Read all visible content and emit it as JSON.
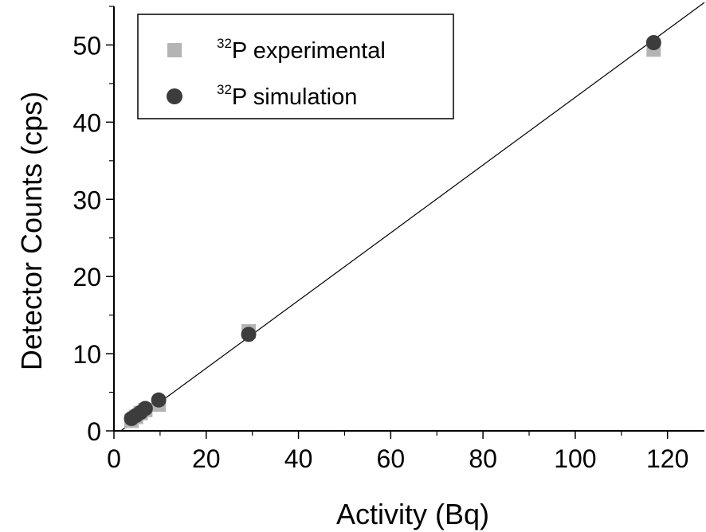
{
  "chart_data": {
    "type": "scatter",
    "title": "",
    "xlabel": "Activity (Bq)",
    "ylabel": "Detector Counts (cps)",
    "xlim": [
      0,
      128
    ],
    "ylim": [
      0,
      55
    ],
    "xticks": [
      0,
      20,
      40,
      60,
      80,
      100,
      120
    ],
    "yticks": [
      0,
      10,
      20,
      30,
      40,
      50
    ],
    "grid": false,
    "legend_position": "top-left",
    "series": [
      {
        "name_sup": "32",
        "name": "P experimental",
        "marker": "square",
        "color": "#b4b4b4",
        "x": [
          3.8,
          4.8,
          5.8,
          6.8,
          9.7,
          29.2,
          117.0
        ],
        "y": [
          1.3,
          1.8,
          2.3,
          2.7,
          3.4,
          12.9,
          49.4
        ]
      },
      {
        "name_sup": "32",
        "name": "P simulation",
        "marker": "circle",
        "color": "#3c3c3c",
        "x": [
          3.8,
          4.8,
          5.8,
          6.8,
          9.7,
          29.2,
          117.0
        ],
        "y": [
          1.6,
          2.0,
          2.4,
          2.9,
          4.0,
          12.5,
          50.3
        ]
      }
    ],
    "fit_line": {
      "color": "#000000",
      "x": [
        1.5,
        128
      ],
      "y": [
        0.0,
        55.5
      ]
    }
  }
}
